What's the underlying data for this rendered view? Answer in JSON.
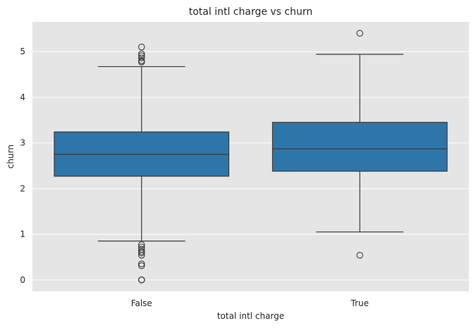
{
  "chart_data": {
    "type": "box",
    "title": "total intl charge vs churn",
    "xlabel": "total intl charge",
    "ylabel": "churn",
    "categories": [
      "False",
      "True"
    ],
    "ylim": [
      -0.25,
      5.65
    ],
    "yticks": [
      0,
      1,
      2,
      3,
      4,
      5
    ],
    "grid": true,
    "colors": {
      "background": "#e5e5e5",
      "box": "#2e75a9",
      "line": "#3a3a3a",
      "grid": "#ffffff"
    },
    "boxes": [
      {
        "category": "False",
        "whisker_low": 0.85,
        "q1": 2.27,
        "median": 2.75,
        "q3": 3.24,
        "whisker_high": 4.67,
        "outliers": [
          0.0,
          0.0,
          0.0,
          0.31,
          0.35,
          0.54,
          0.59,
          0.62,
          0.67,
          0.72,
          0.77,
          4.77,
          4.8,
          4.86,
          4.91,
          4.95,
          5.1
        ]
      },
      {
        "category": "True",
        "whisker_low": 1.05,
        "q1": 2.38,
        "median": 2.87,
        "q3": 3.45,
        "whisker_high": 4.94,
        "outliers": [
          0.54,
          5.4
        ]
      }
    ]
  }
}
